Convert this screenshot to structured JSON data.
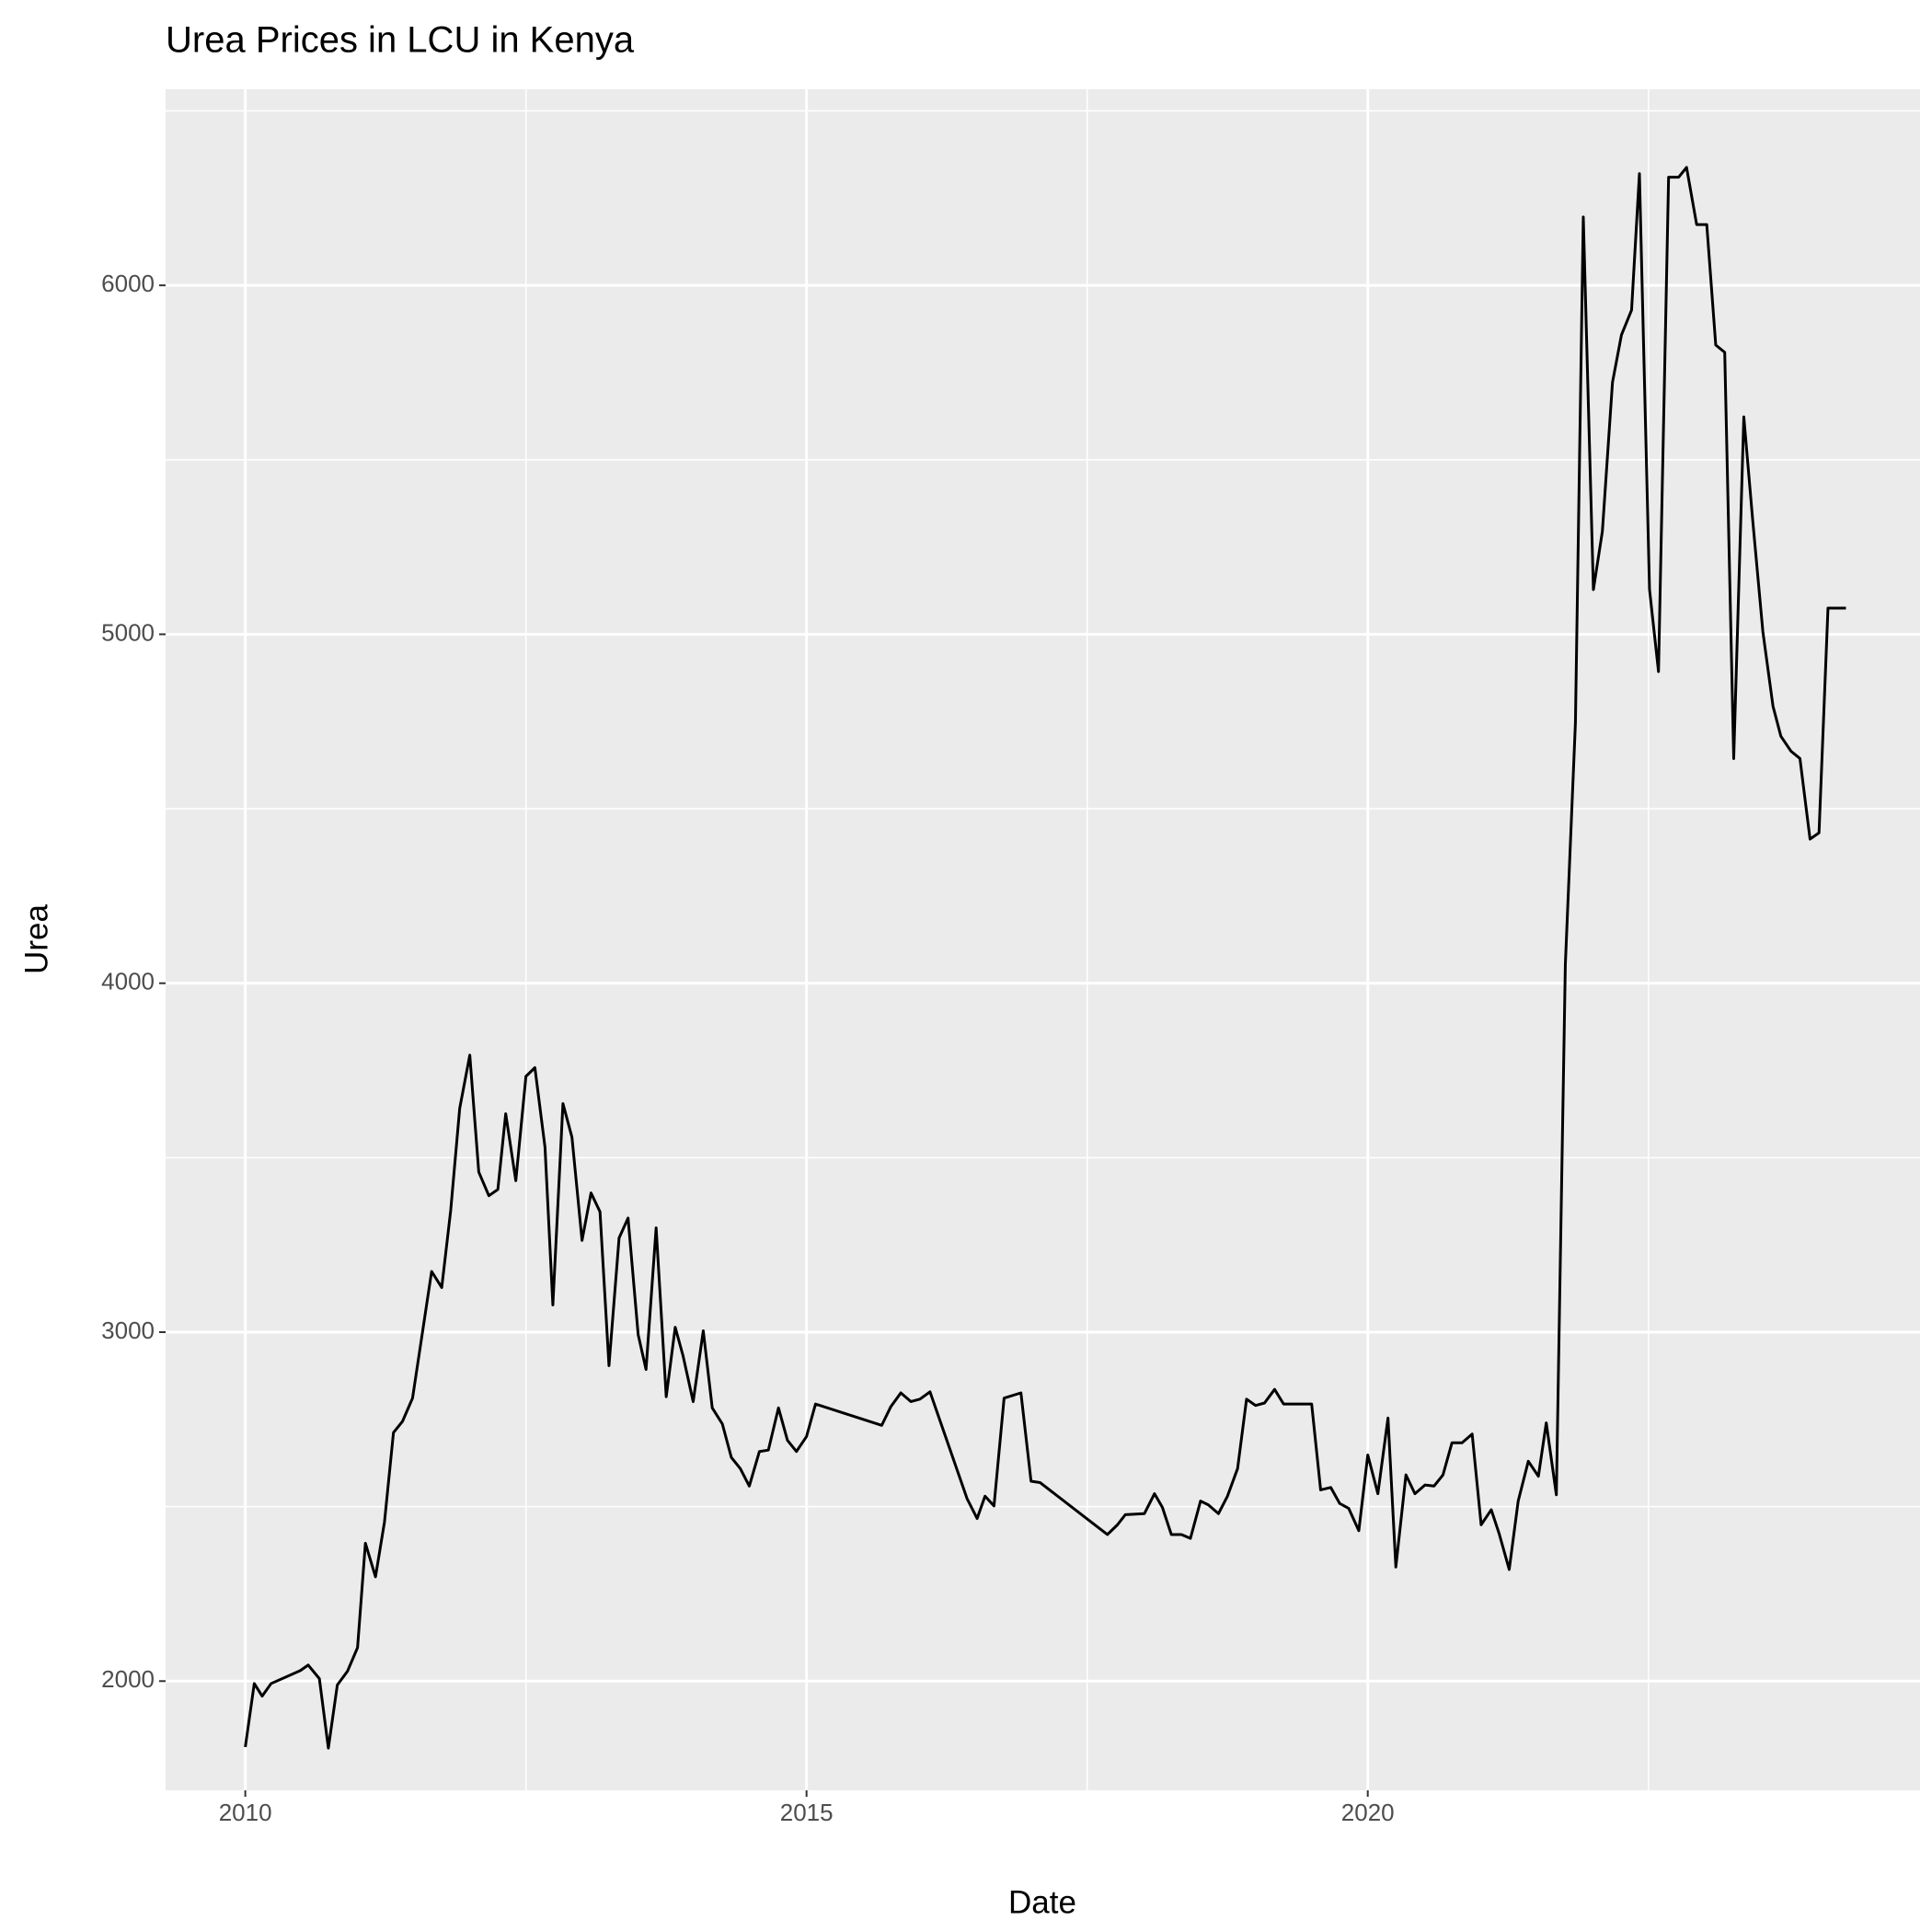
{
  "chart_data": {
    "type": "line",
    "title": "Urea Prices in LCU in Kenya",
    "x_label": "Date",
    "y_label": "Urea",
    "x": [
      2010.0,
      2010.08,
      2010.15,
      2010.23,
      2010.49,
      2010.56,
      2010.66,
      2010.74,
      2010.82,
      2010.91,
      2011.0,
      2011.07,
      2011.16,
      2011.24,
      2011.32,
      2011.4,
      2011.49,
      2011.66,
      2011.75,
      2011.83,
      2011.91,
      2012.0,
      2012.08,
      2012.17,
      2012.25,
      2012.32,
      2012.41,
      2012.5,
      2012.58,
      2012.67,
      2012.74,
      2012.83,
      2012.91,
      2013.0,
      2013.08,
      2013.16,
      2013.24,
      2013.33,
      2013.41,
      2013.5,
      2013.57,
      2013.66,
      2013.75,
      2013.83,
      2013.9,
      2013.99,
      2014.08,
      2014.16,
      2014.25,
      2014.33,
      2014.41,
      2014.49,
      2014.58,
      2014.66,
      2014.75,
      2014.83,
      2014.91,
      2015.0,
      2015.08,
      2015.67,
      2015.75,
      2015.84,
      2015.93,
      2016.01,
      2016.1,
      2016.43,
      2016.52,
      2016.59,
      2016.67,
      2016.76,
      2016.91,
      2017.0,
      2017.08,
      2017.68,
      2017.77,
      2017.84,
      2018.01,
      2018.1,
      2018.17,
      2018.25,
      2018.34,
      2018.42,
      2018.51,
      2018.58,
      2018.67,
      2018.75,
      2018.84,
      2018.92,
      2019.0,
      2019.08,
      2019.17,
      2019.25,
      2019.5,
      2019.58,
      2019.67,
      2019.75,
      2019.83,
      2019.92,
      2020.0,
      2020.09,
      2020.18,
      2020.25,
      2020.34,
      2020.42,
      2020.51,
      2020.59,
      2020.67,
      2020.75,
      2020.84,
      2020.93,
      2021.01,
      2021.1,
      2021.17,
      2021.26,
      2021.34,
      2021.43,
      2021.52,
      2021.59,
      2021.68,
      2021.76,
      2021.85,
      2021.92,
      2022.01,
      2022.09,
      2022.18,
      2022.26,
      2022.35,
      2022.42,
      2022.51,
      2022.59,
      2022.68,
      2022.77,
      2022.84,
      2022.93,
      2023.02,
      2023.1,
      2023.18,
      2023.26,
      2023.35,
      2023.43,
      2023.52,
      2023.61,
      2023.68,
      2023.77,
      2023.85,
      2023.94,
      2024.02,
      2024.1,
      2024.26
    ],
    "values": [
      1811,
      1993,
      1957,
      1993,
      2030,
      2046,
      2007,
      1808,
      1989,
      2028,
      2096,
      2395,
      2299,
      2456,
      2712,
      2744,
      2811,
      3174,
      3128,
      3349,
      3641,
      3794,
      3459,
      3391,
      3409,
      3626,
      3434,
      3733,
      3758,
      3530,
      3078,
      3655,
      3559,
      3263,
      3399,
      3345,
      2904,
      3270,
      3327,
      2993,
      2893,
      3299,
      2815,
      3014,
      2932,
      2801,
      3004,
      2783,
      2737,
      2641,
      2609,
      2559,
      2658,
      2662,
      2783,
      2690,
      2658,
      2701,
      2794,
      2733,
      2786,
      2826,
      2801,
      2808,
      2829,
      2523,
      2466,
      2530,
      2502,
      2811,
      2826,
      2573,
      2569,
      2420,
      2448,
      2477,
      2480,
      2537,
      2498,
      2420,
      2420,
      2409,
      2516,
      2505,
      2480,
      2530,
      2609,
      2808,
      2790,
      2797,
      2836,
      2794,
      2794,
      2548,
      2555,
      2509,
      2495,
      2431,
      2648,
      2537,
      2754,
      2327,
      2591,
      2537,
      2562,
      2559,
      2591,
      2683,
      2683,
      2708,
      2448,
      2491,
      2423,
      2320,
      2516,
      2630,
      2587,
      2740,
      2534,
      4053,
      4747,
      6196,
      5128,
      5295,
      5722,
      5858,
      5929,
      6320,
      5128,
      4893,
      6310,
      6310,
      6338,
      6174,
      6174,
      5829,
      5808,
      4644,
      5623,
      5324,
      5007,
      4794,
      4708,
      4665,
      4644,
      4413,
      4431,
      5075,
      5075
    ],
    "color": "#000000",
    "xlim": [
      2009.29,
      2024.92
    ],
    "xticks": [
      2010,
      2015,
      2020
    ],
    "ylim": [
      1687,
      6562
    ],
    "yticks": [
      2000,
      3000,
      4000,
      5000,
      6000
    ],
    "grid": true,
    "background": "#ebebeb"
  }
}
